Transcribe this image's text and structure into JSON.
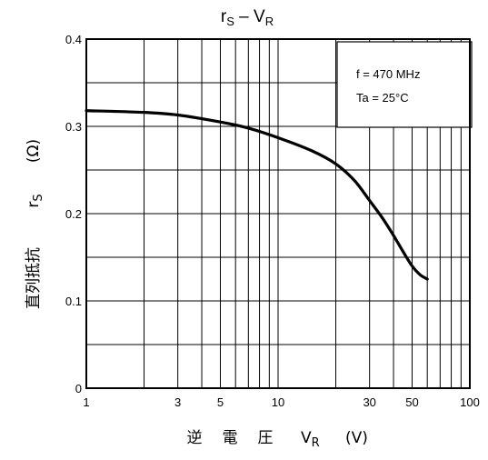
{
  "chart_data": {
    "type": "line",
    "title": {
      "main": "r",
      "main_sub": "S",
      "sep": " – V",
      "sep_sub": "R"
    },
    "xlabel": {
      "jp": [
        "逆",
        "電",
        "圧"
      ],
      "var": "V",
      "var_sub": "R",
      "unit": "(V)"
    },
    "ylabel": {
      "jp": "直列抵抗",
      "var": "r",
      "var_sub": "S",
      "unit": "(Ω)"
    },
    "x_scale": "log",
    "xlim": [
      1,
      100
    ],
    "ylim": [
      0,
      0.4
    ],
    "x_ticks": [
      {
        "v": 1,
        "label": "1"
      },
      {
        "v": 3,
        "label": "3"
      },
      {
        "v": 5,
        "label": "5"
      },
      {
        "v": 10,
        "label": "10"
      },
      {
        "v": 30,
        "label": "30"
      },
      {
        "v": 50,
        "label": "50"
      },
      {
        "v": 100,
        "label": "100"
      }
    ],
    "y_ticks": [
      {
        "v": 0,
        "label": "0"
      },
      {
        "v": 0.1,
        "label": "0.1"
      },
      {
        "v": 0.2,
        "label": "0.2"
      },
      {
        "v": 0.3,
        "label": "0.3"
      },
      {
        "v": 0.4,
        "label": "0.4"
      }
    ],
    "y_grid_minor": [
      0.05,
      0.15,
      0.25,
      0.35
    ],
    "grid": true,
    "legend": {
      "position": "top-right",
      "lines": [
        "f = 470 MHz",
        "Ta = 25°C"
      ]
    },
    "series": [
      {
        "x": [
          1,
          2,
          3,
          5,
          7,
          10,
          15,
          20,
          25,
          30,
          35,
          40,
          45,
          50,
          55,
          60
        ],
        "y": [
          0.318,
          0.316,
          0.313,
          0.305,
          0.298,
          0.287,
          0.272,
          0.257,
          0.238,
          0.215,
          0.195,
          0.175,
          0.156,
          0.14,
          0.13,
          0.125
        ]
      }
    ]
  }
}
